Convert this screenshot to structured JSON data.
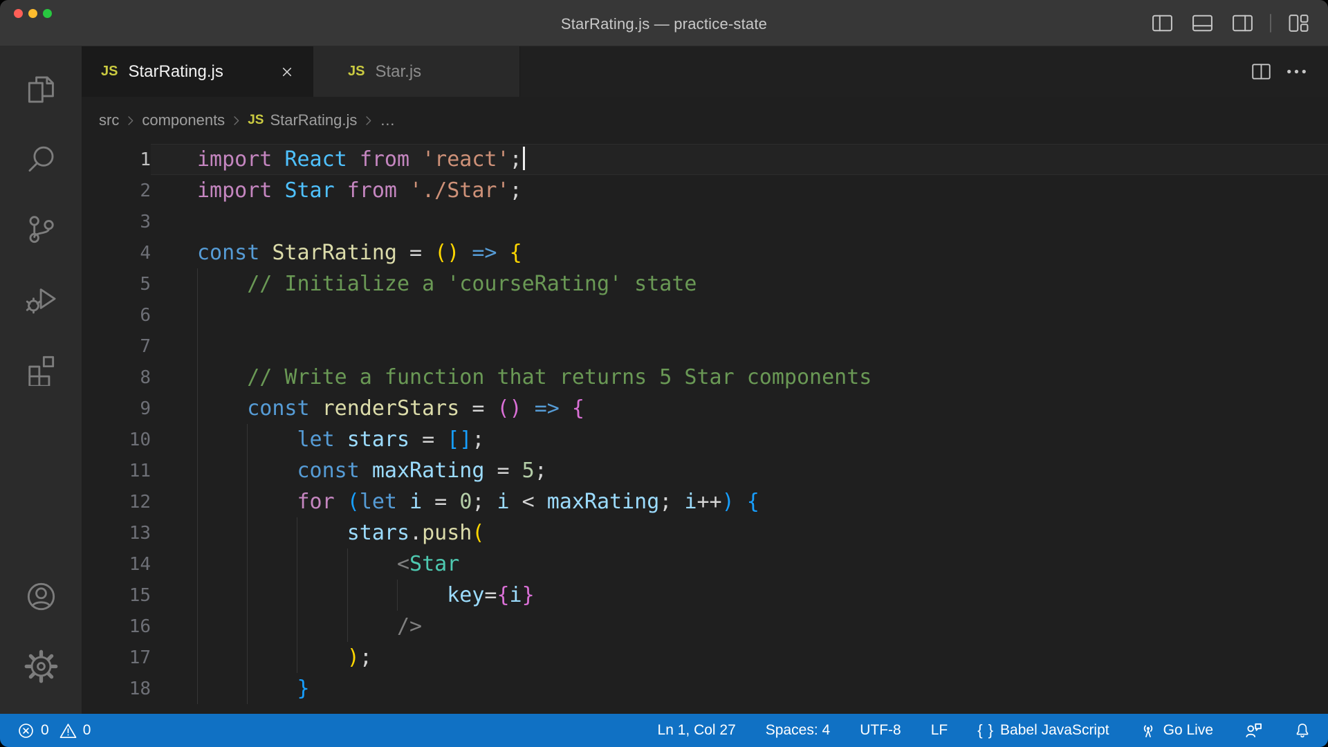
{
  "window": {
    "title": "StarRating.js — practice-state"
  },
  "colors": {
    "status_bar": "#1071c4",
    "titlebar": "#373737",
    "editor_bg": "#1f1f1f",
    "activity_bar": "#2b2b2b",
    "active_tab": "#1a1a1a",
    "inactive_tab": "#292929",
    "js_badge": "#cbcb41",
    "traffic_lights": [
      "#ff5f57",
      "#febc2e",
      "#28c840"
    ]
  },
  "titlebar_icons": [
    {
      "name": "toggle-primary-sidebar",
      "icon": "layout-sidebar-left"
    },
    {
      "name": "toggle-panel",
      "icon": "layout-panel"
    },
    {
      "name": "toggle-secondary-sidebar",
      "icon": "layout-sidebar-right"
    },
    {
      "name": "separator"
    },
    {
      "name": "customize-layout",
      "icon": "layout-customize"
    }
  ],
  "activity_bar": {
    "top": [
      {
        "name": "explorer",
        "icon": "files"
      },
      {
        "name": "search",
        "icon": "search"
      },
      {
        "name": "source-control",
        "icon": "source-control"
      },
      {
        "name": "run-and-debug",
        "icon": "debug"
      },
      {
        "name": "extensions",
        "icon": "extensions"
      }
    ],
    "bottom": [
      {
        "name": "accounts",
        "icon": "account"
      },
      {
        "name": "settings",
        "icon": "settings"
      }
    ]
  },
  "tabs": [
    {
      "label": "StarRating.js",
      "icon": "js",
      "active": true,
      "closable": true
    },
    {
      "label": "Star.js",
      "icon": "js",
      "active": false,
      "closable": false
    }
  ],
  "editor_actions": [
    {
      "name": "split-editor",
      "icon": "split-horizontal"
    },
    {
      "name": "more-actions",
      "icon": "ellipsis"
    }
  ],
  "breadcrumb": {
    "items": [
      {
        "label": "src"
      },
      {
        "label": "components"
      },
      {
        "label": "StarRating.js",
        "icon": "js"
      },
      {
        "label": "…"
      }
    ]
  },
  "editor": {
    "palette": {
      "k1": "#569CD6",
      "k2": "#C586C0",
      "c": "#4FC1FF",
      "v": "#9CDCFE",
      "f": "#DCDCAA",
      "s": "#CE9178",
      "n": "#B5CEA8",
      "cm": "#6A9955",
      "d": "#D4D4D4",
      "b1": "#FFD700",
      "b2": "#DA70D6",
      "b3": "#179FFF",
      "t": "#4EC9B0",
      "t2": "#808080"
    },
    "lines": [
      {
        "n": 1,
        "indent": 0,
        "guides": 0,
        "active": true,
        "cursor": true,
        "tokens": [
          [
            "import ",
            "k2"
          ],
          [
            "React",
            "c"
          ],
          [
            " ",
            "d"
          ],
          [
            "from",
            "k2"
          ],
          [
            " ",
            "d"
          ],
          [
            "'react'",
            "s"
          ],
          [
            ";",
            "d"
          ]
        ]
      },
      {
        "n": 2,
        "indent": 0,
        "guides": 0,
        "tokens": [
          [
            "import ",
            "k2"
          ],
          [
            "Star",
            "c"
          ],
          [
            " ",
            "d"
          ],
          [
            "from",
            "k2"
          ],
          [
            " ",
            "d"
          ],
          [
            "'./Star'",
            "s"
          ],
          [
            ";",
            "d"
          ]
        ]
      },
      {
        "n": 3,
        "indent": 0,
        "guides": 0,
        "tokens": []
      },
      {
        "n": 4,
        "indent": 0,
        "guides": 0,
        "tokens": [
          [
            "const ",
            "k1"
          ],
          [
            "StarRating",
            "f"
          ],
          [
            " = ",
            "d"
          ],
          [
            "()",
            "b1"
          ],
          [
            " ",
            "d"
          ],
          [
            "=>",
            "k1"
          ],
          [
            " ",
            "d"
          ],
          [
            "{",
            "b1"
          ]
        ]
      },
      {
        "n": 5,
        "indent": 4,
        "guides": 1,
        "tokens": [
          [
            "// Initialize a 'courseRating' state",
            "cm"
          ]
        ]
      },
      {
        "n": 6,
        "indent": 0,
        "guides": 1,
        "tokens": []
      },
      {
        "n": 7,
        "indent": 0,
        "guides": 1,
        "tokens": []
      },
      {
        "n": 8,
        "indent": 4,
        "guides": 1,
        "tokens": [
          [
            "// Write a function that returns 5 Star components",
            "cm"
          ]
        ]
      },
      {
        "n": 9,
        "indent": 4,
        "guides": 1,
        "tokens": [
          [
            "const ",
            "k1"
          ],
          [
            "renderStars",
            "f"
          ],
          [
            " = ",
            "d"
          ],
          [
            "()",
            "b2"
          ],
          [
            " ",
            "d"
          ],
          [
            "=>",
            "k1"
          ],
          [
            " ",
            "d"
          ],
          [
            "{",
            "b2"
          ]
        ]
      },
      {
        "n": 10,
        "indent": 8,
        "guides": 2,
        "tokens": [
          [
            "let ",
            "k1"
          ],
          [
            "stars",
            "v"
          ],
          [
            " = ",
            "d"
          ],
          [
            "[]",
            "b3"
          ],
          [
            ";",
            "d"
          ]
        ]
      },
      {
        "n": 11,
        "indent": 8,
        "guides": 2,
        "tokens": [
          [
            "const ",
            "k1"
          ],
          [
            "maxRating",
            "v"
          ],
          [
            " = ",
            "d"
          ],
          [
            "5",
            "n"
          ],
          [
            ";",
            "d"
          ]
        ]
      },
      {
        "n": 12,
        "indent": 8,
        "guides": 2,
        "tokens": [
          [
            "for ",
            "k2"
          ],
          [
            "(",
            "b3"
          ],
          [
            "let ",
            "k1"
          ],
          [
            "i",
            "v"
          ],
          [
            " = ",
            "d"
          ],
          [
            "0",
            "n"
          ],
          [
            "; ",
            "d"
          ],
          [
            "i",
            "v"
          ],
          [
            " < ",
            "d"
          ],
          [
            "maxRating",
            "v"
          ],
          [
            "; ",
            "d"
          ],
          [
            "i",
            "v"
          ],
          [
            "++",
            "d"
          ],
          [
            ")",
            "b3"
          ],
          [
            " ",
            "d"
          ],
          [
            "{",
            "b3"
          ]
        ]
      },
      {
        "n": 13,
        "indent": 12,
        "guides": 3,
        "tokens": [
          [
            "stars",
            "v"
          ],
          [
            ".",
            "d"
          ],
          [
            "push",
            "f"
          ],
          [
            "(",
            "b1"
          ]
        ]
      },
      {
        "n": 14,
        "indent": 16,
        "guides": 4,
        "tokens": [
          [
            "<",
            "t2"
          ],
          [
            "Star",
            "t"
          ]
        ]
      },
      {
        "n": 15,
        "indent": 20,
        "guides": 5,
        "tokens": [
          [
            "key",
            "v"
          ],
          [
            "=",
            "d"
          ],
          [
            "{",
            "b2"
          ],
          [
            "i",
            "v"
          ],
          [
            "}",
            "b2"
          ]
        ]
      },
      {
        "n": 16,
        "indent": 16,
        "guides": 4,
        "tokens": [
          [
            "/>",
            "t2"
          ]
        ]
      },
      {
        "n": 17,
        "indent": 12,
        "guides": 3,
        "tokens": [
          [
            ")",
            "b1"
          ],
          [
            ";",
            "d"
          ]
        ]
      },
      {
        "n": 18,
        "indent": 8,
        "guides": 2,
        "tokens": [
          [
            "}",
            "b3"
          ]
        ]
      }
    ]
  },
  "status_bar": {
    "left": [
      {
        "name": "problems-errors",
        "icon": "error-circle",
        "value": "0"
      },
      {
        "name": "problems-warnings",
        "icon": "warning-triangle",
        "value": "0"
      }
    ],
    "right": [
      {
        "name": "cursor-position",
        "label": "Ln 1, Col 27"
      },
      {
        "name": "indentation",
        "label": "Spaces: 4"
      },
      {
        "name": "encoding",
        "label": "UTF-8"
      },
      {
        "name": "end-of-line",
        "label": "LF"
      },
      {
        "name": "language-mode",
        "icon": "curly-brackets",
        "label": "Babel JavaScript"
      },
      {
        "name": "go-live",
        "icon": "broadcast",
        "label": "Go Live"
      },
      {
        "name": "feedback",
        "icon": "person-feedback"
      },
      {
        "name": "notifications",
        "icon": "bell"
      }
    ]
  }
}
